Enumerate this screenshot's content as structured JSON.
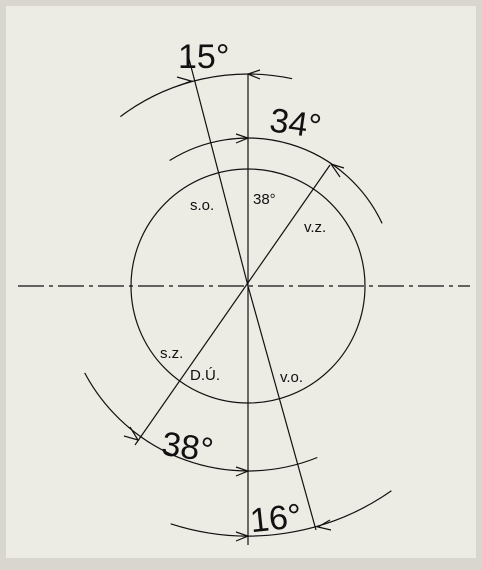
{
  "labels": {
    "angle_top_left": "15°",
    "angle_top_right": "34°",
    "angle_inner": "38°",
    "so": "s.o.",
    "vz": "v.z.",
    "sz": "s.z.",
    "du": "D.Ú.",
    "vo": "v.o.",
    "angle_bottom_left": "38°",
    "angle_bottom_right": "16°"
  }
}
